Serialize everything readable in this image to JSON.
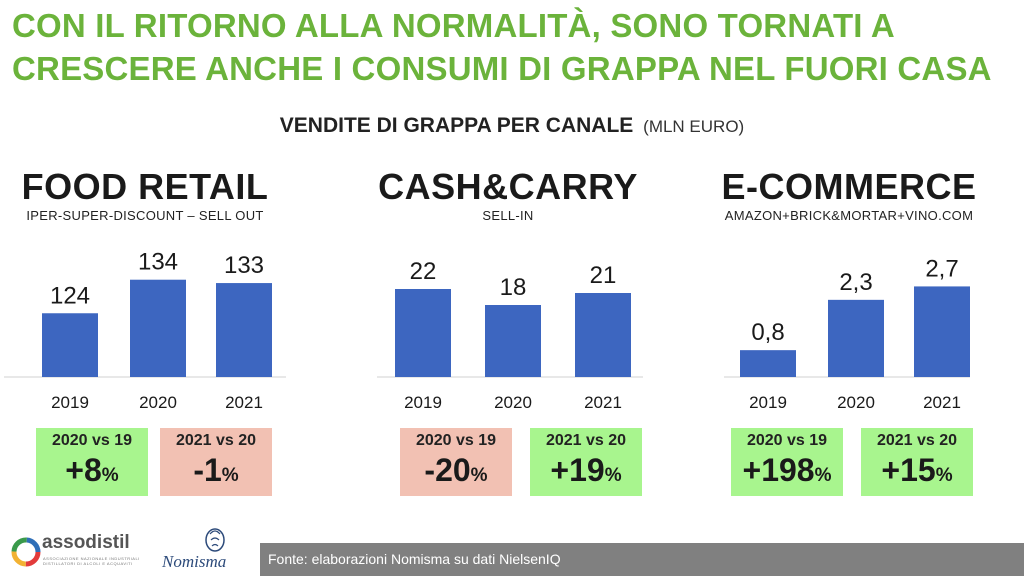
{
  "headline": {
    "line1": "CON IL RITORNO ALLA NORMALITÀ, SONO TORNATI A",
    "line2": "CRESCERE ANCHE I CONSUMI DI GRAPPA NEL FUORI CASA"
  },
  "subheadline": {
    "text": "VENDITE DI GRAPPA PER CANALE",
    "unit": "(MLN EURO)"
  },
  "colors": {
    "headline": "#6bb33b",
    "bar": "#3d66c0",
    "badge_positive": "#a8f58e",
    "badge_negative": "#f2c1b3"
  },
  "chart_data": [
    {
      "type": "bar",
      "title": "FOOD RETAIL",
      "subtitle": "IPER-SUPER-DISCOUNT – SELL OUT",
      "categories": [
        "2019",
        "2020",
        "2021"
      ],
      "values": [
        124,
        134,
        133
      ],
      "value_labels": [
        "124",
        "134",
        "133"
      ],
      "baseline": 105,
      "max": 136,
      "badges": [
        {
          "label": "2020 vs 19",
          "value": "+8",
          "suffix": "%",
          "tone": "positive"
        },
        {
          "label": "2021 vs 20",
          "value": "-1",
          "suffix": "%",
          "tone": "negative"
        }
      ]
    },
    {
      "type": "bar",
      "title": "CASH&CARRY",
      "subtitle": "SELL-IN",
      "categories": [
        "2019",
        "2020",
        "2021"
      ],
      "values": [
        22,
        18,
        21
      ],
      "value_labels": [
        "22",
        "18",
        "21"
      ],
      "baseline": 0,
      "max": 26,
      "badges": [
        {
          "label": "2020 vs 19",
          "value": "-20",
          "suffix": "%",
          "tone": "negative"
        },
        {
          "label": "2021 vs 20",
          "value": "+19",
          "suffix": "%",
          "tone": "positive"
        }
      ]
    },
    {
      "type": "bar",
      "title": "E-COMMERCE",
      "subtitle": "AMAZON+BRICK&MORTAR+VINO.COM",
      "categories": [
        "2019",
        "2020",
        "2021"
      ],
      "values": [
        0.8,
        2.3,
        2.7
      ],
      "value_labels": [
        "0,8",
        "2,3",
        "2,7"
      ],
      "baseline": 0,
      "max": 3.1,
      "badges": [
        {
          "label": "2020 vs 19",
          "value": "+198",
          "suffix": "%",
          "tone": "positive"
        },
        {
          "label": "2021 vs 20",
          "value": "+15",
          "suffix": "%",
          "tone": "positive"
        }
      ]
    }
  ],
  "footer": {
    "source": "Fonte: elaborazioni Nomisma su dati NielsenIQ"
  },
  "logos": {
    "assodistil": {
      "text": "assodistil",
      "tagline": "ASSOCIAZIONE NAZIONALE INDUSTRIALI DISTILLATORI DI ALCOLI E ACQUAVITI"
    },
    "nomisma": {
      "text": "Nomisma"
    }
  }
}
